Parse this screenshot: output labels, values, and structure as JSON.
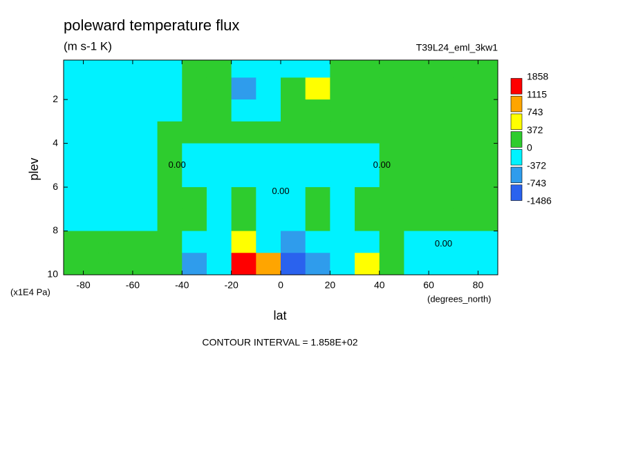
{
  "chart_data": {
    "type": "contour",
    "title": "poleward temperature flux",
    "subtitle": "(m s-1 K)",
    "dataset": "T39L24_eml_3kw1",
    "x_label": "lat",
    "x_units": "(degrees_north)",
    "y_label": "plev",
    "y_units": "(x1E4 Pa)",
    "footer": "CONTOUR INTERVAL = 1.858E+02",
    "xlim": [
      -88,
      88
    ],
    "xticks": [
      -80,
      -60,
      -40,
      -20,
      0,
      20,
      40,
      60,
      80
    ],
    "ylim": [
      10,
      0.2
    ],
    "yticks": [
      2,
      4,
      6,
      8,
      10
    ],
    "x": [
      -85,
      -75,
      -65,
      -55,
      -45,
      -35,
      -25,
      -15,
      -5,
      5,
      15,
      25,
      35,
      45,
      55,
      65,
      75,
      85
    ],
    "y": [
      0.5,
      1.5,
      2.5,
      3.5,
      4.5,
      5.5,
      6.5,
      7.5,
      8.5,
      9.5
    ],
    "z": [
      [
        -100,
        -100,
        -100,
        -100,
        -100,
        100,
        100,
        -100,
        -100,
        -100,
        -100,
        100,
        100,
        100,
        100,
        100,
        100,
        100
      ],
      [
        -100,
        -100,
        -100,
        -100,
        -100,
        100,
        100,
        -500,
        -200,
        200,
        500,
        100,
        100,
        100,
        100,
        100,
        100,
        100
      ],
      [
        -100,
        -100,
        -100,
        -100,
        -100,
        100,
        100,
        -200,
        -100,
        100,
        200,
        100,
        100,
        100,
        100,
        100,
        100,
        100
      ],
      [
        -100,
        -100,
        -100,
        -100,
        100,
        100,
        100,
        100,
        100,
        100,
        100,
        100,
        100,
        100,
        100,
        100,
        100,
        100
      ],
      [
        -100,
        -100,
        -100,
        -100,
        100,
        -100,
        -100,
        -100,
        -100,
        -100,
        -100,
        -100,
        -100,
        100,
        100,
        100,
        100,
        100
      ],
      [
        -100,
        -100,
        -100,
        -100,
        100,
        -100,
        -100,
        -100,
        -100,
        -100,
        -100,
        -100,
        -100,
        100,
        100,
        100,
        100,
        100
      ],
      [
        -100,
        -100,
        -100,
        -100,
        100,
        100,
        -100,
        100,
        -100,
        -100,
        100,
        -100,
        100,
        100,
        100,
        100,
        100,
        100
      ],
      [
        -100,
        -100,
        -100,
        -100,
        100,
        100,
        -100,
        100,
        -100,
        -100,
        100,
        -100,
        100,
        100,
        100,
        100,
        100,
        100
      ],
      [
        100,
        100,
        100,
        100,
        100,
        -100,
        -100,
        400,
        -100,
        -400,
        -100,
        -100,
        -100,
        100,
        -100,
        -100,
        -100,
        -100
      ],
      [
        100,
        100,
        100,
        100,
        100,
        -450,
        -100,
        1300,
        800,
        -1000,
        -500,
        -100,
        450,
        100,
        -100,
        -200,
        -100,
        -100
      ]
    ],
    "levels": [
      -1486,
      -743,
      -372,
      0,
      372,
      743,
      1115,
      1858
    ],
    "colors": [
      "#2a62ee",
      "#2f9cec",
      "#00f2ff",
      "#2ecc2e",
      "#ffff00",
      "#ffa500",
      "#ff0000"
    ],
    "contour_labels": [
      {
        "text": "0.00",
        "x": 66,
        "y": 8.6
      },
      {
        "text": "0.00",
        "x": -42,
        "y": 5.0
      },
      {
        "text": "0.00",
        "x": 41,
        "y": 5.0
      },
      {
        "text": "0.00",
        "x": 0,
        "y": 6.2
      }
    ]
  }
}
